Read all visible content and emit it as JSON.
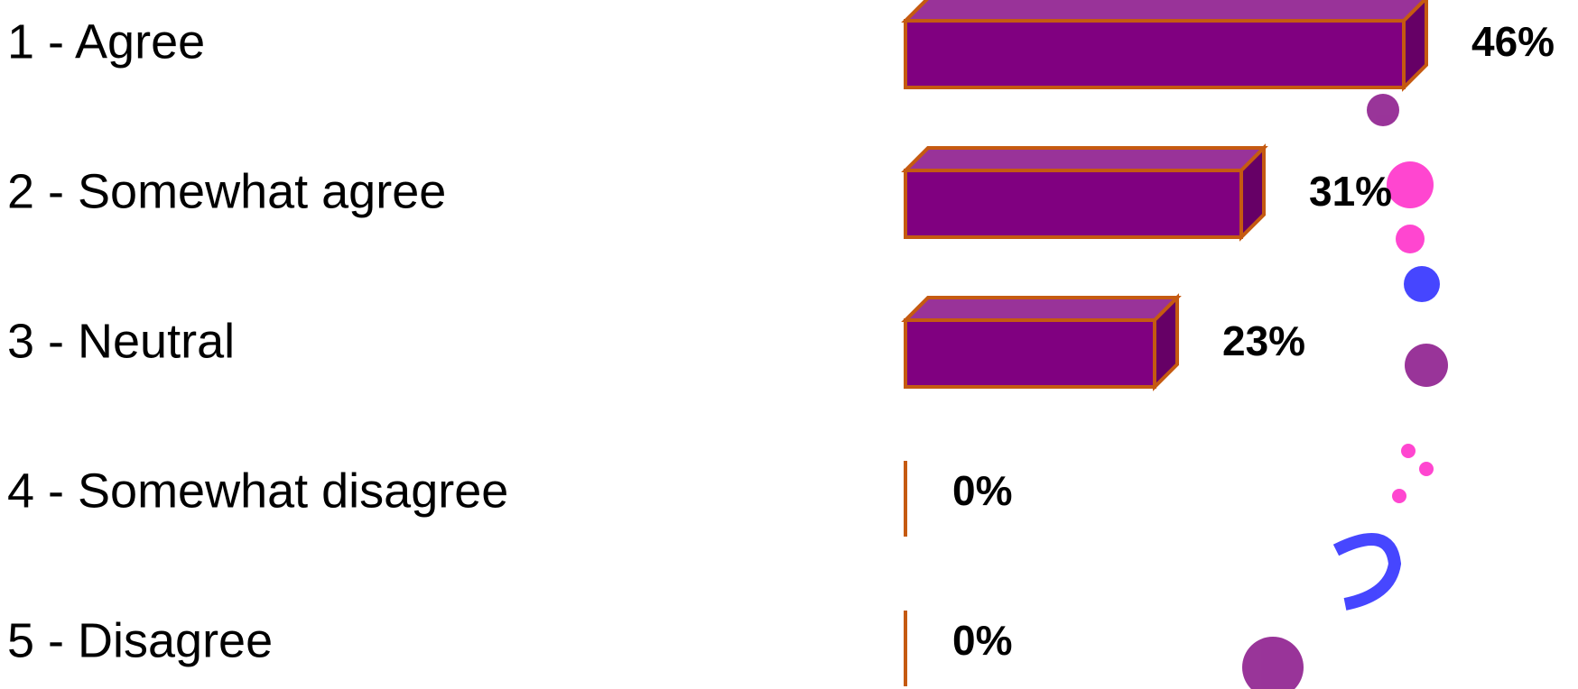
{
  "chart_data": {
    "type": "bar",
    "orientation": "horizontal",
    "categories": [
      "1 - Agree",
      "2 - Somewhat agree",
      "3 - Neutral",
      "4 - Somewhat disagree",
      "5 - Disagree"
    ],
    "values": [
      46,
      31,
      23,
      0,
      0
    ],
    "value_labels": [
      "46%",
      "31%",
      "23%",
      "0%",
      "0%"
    ],
    "color": "#800080",
    "edge_color": "#c55a11"
  }
}
